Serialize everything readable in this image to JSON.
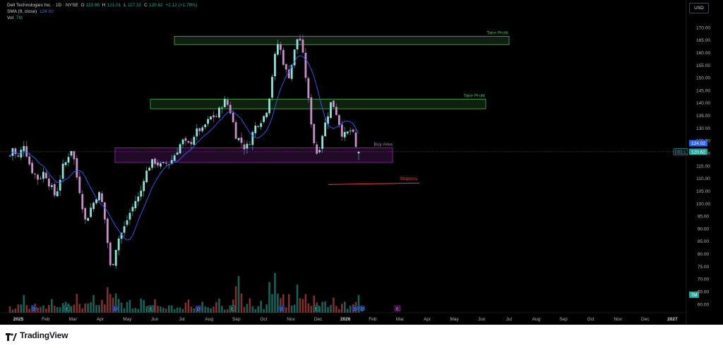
{
  "legend": {
    "symbol_title": "Dell Technologies Inc. · 1D · NYSE",
    "open_label": "O",
    "open": "119.98",
    "high_label": "H",
    "high": "121.01",
    "low_label": "L",
    "low": "117.32",
    "close_label": "C",
    "close": "120.62",
    "change": "+2.12 (+1.79%)",
    "sma_label": "SMA (9, close)",
    "sma_value": "124.02",
    "vol_label": "Vol",
    "vol_value": "7M"
  },
  "currency": "USD",
  "brand": "TradingView",
  "badges": {
    "sma_badge": "124.02",
    "price_badge": "120.62",
    "ticker_badge": "DELL",
    "volume_badge": "7M"
  },
  "colors": {
    "up": "#26a69a",
    "down": "#ef5350",
    "sma": "#2962ff",
    "take_profit": "#4caf50",
    "buy_area": "#9c27b0",
    "stoploss": "#f23645"
  },
  "chart_data": {
    "type": "candlestick",
    "y_axis_ticks": [
      170,
      165,
      160,
      155,
      150,
      145,
      140,
      135,
      130,
      125,
      120,
      115,
      110,
      105,
      100,
      95,
      90,
      85,
      80,
      75,
      70,
      65,
      60
    ],
    "y_tick_labels": [
      "170.00",
      "165.00",
      "160.00",
      "155.00",
      "150.00",
      "145.00",
      "140.00",
      "135.00",
      "130.00",
      "125.00",
      "120.00",
      "115.00",
      "110.00",
      "105.00",
      "100.00",
      "95.00",
      "90.00",
      "85.00",
      "80.00",
      "75.00",
      "70.00",
      "65.00",
      "60.00"
    ],
    "ylim": [
      58,
      173
    ],
    "x_axis_labels": [
      "2025",
      "Feb",
      "Mar",
      "Apr",
      "May",
      "Jun",
      "Jul",
      "Aug",
      "Sep",
      "Oct",
      "Nov",
      "Dec",
      "2026",
      "Feb",
      "Mar",
      "Apr",
      "May",
      "Jun",
      "Jul",
      "Aug",
      "Sep",
      "Oct",
      "Nov",
      "Dec",
      "2027"
    ],
    "last_close": 120.62,
    "sma_last": 124.02,
    "price_path": [
      [
        0,
        119
      ],
      [
        5,
        123
      ],
      [
        10,
        117
      ],
      [
        15,
        120
      ],
      [
        20,
        124
      ],
      [
        25,
        119
      ],
      [
        30,
        114
      ],
      [
        35,
        112
      ],
      [
        40,
        110
      ],
      [
        45,
        111
      ],
      [
        50,
        113
      ],
      [
        55,
        109
      ],
      [
        60,
        106
      ],
      [
        65,
        103
      ],
      [
        70,
        107
      ],
      [
        75,
        114
      ],
      [
        80,
        116
      ],
      [
        85,
        120
      ],
      [
        88,
        122
      ],
      [
        92,
        118
      ],
      [
        96,
        111
      ],
      [
        100,
        106
      ],
      [
        104,
        100
      ],
      [
        108,
        93
      ],
      [
        112,
        95
      ],
      [
        116,
        98
      ],
      [
        120,
        100
      ],
      [
        124,
        103
      ],
      [
        128,
        104
      ],
      [
        132,
        101
      ],
      [
        136,
        95
      ],
      [
        140,
        86
      ],
      [
        143,
        78
      ],
      [
        146,
        72
      ],
      [
        148,
        76
      ],
      [
        152,
        82
      ],
      [
        156,
        86
      ],
      [
        160,
        88
      ],
      [
        164,
        90
      ],
      [
        168,
        93
      ],
      [
        172,
        96
      ],
      [
        176,
        98
      ],
      [
        180,
        101
      ],
      [
        184,
        102
      ],
      [
        188,
        104
      ],
      [
        192,
        110
      ],
      [
        196,
        112
      ],
      [
        200,
        115
      ],
      [
        204,
        116
      ],
      [
        208,
        117
      ],
      [
        212,
        116
      ],
      [
        216,
        115
      ],
      [
        220,
        115
      ],
      [
        224,
        116
      ],
      [
        228,
        116
      ],
      [
        232,
        117
      ],
      [
        236,
        119
      ],
      [
        240,
        121
      ],
      [
        244,
        123
      ],
      [
        248,
        125
      ],
      [
        252,
        124
      ],
      [
        256,
        123
      ],
      [
        260,
        124
      ],
      [
        264,
        127
      ],
      [
        268,
        128
      ],
      [
        272,
        130
      ],
      [
        276,
        128
      ],
      [
        280,
        131
      ],
      [
        284,
        132
      ],
      [
        288,
        134
      ],
      [
        292,
        135
      ],
      [
        296,
        134
      ],
      [
        300,
        136
      ],
      [
        304,
        139
      ],
      [
        308,
        141
      ],
      [
        312,
        140
      ],
      [
        316,
        138
      ],
      [
        320,
        134
      ],
      [
        324,
        128
      ],
      [
        328,
        126
      ],
      [
        332,
        125
      ],
      [
        336,
        123
      ],
      [
        340,
        122
      ],
      [
        344,
        124
      ],
      [
        348,
        127
      ],
      [
        352,
        130
      ],
      [
        356,
        132
      ],
      [
        360,
        133
      ],
      [
        364,
        134
      ],
      [
        368,
        136
      ],
      [
        372,
        140
      ],
      [
        376,
        148
      ],
      [
        380,
        156
      ],
      [
        384,
        162
      ],
      [
        387,
        165
      ],
      [
        390,
        160
      ],
      [
        394,
        156
      ],
      [
        398,
        152
      ],
      [
        402,
        151
      ],
      [
        406,
        156
      ],
      [
        410,
        161
      ],
      [
        414,
        166
      ],
      [
        418,
        165
      ],
      [
        422,
        158
      ],
      [
        426,
        150
      ],
      [
        430,
        140
      ],
      [
        434,
        132
      ],
      [
        438,
        124
      ],
      [
        442,
        120
      ],
      [
        446,
        123
      ],
      [
        450,
        128
      ],
      [
        454,
        132
      ],
      [
        458,
        136
      ],
      [
        462,
        140
      ],
      [
        466,
        139
      ],
      [
        470,
        136
      ],
      [
        474,
        132
      ],
      [
        478,
        128
      ],
      [
        482,
        127
      ],
      [
        486,
        128
      ],
      [
        490,
        129
      ],
      [
        494,
        127
      ],
      [
        498,
        122
      ],
      [
        502,
        120.62
      ]
    ],
    "volume_peaks": [
      [
        12,
        16
      ],
      [
        20,
        22
      ],
      [
        34,
        18
      ],
      [
        48,
        12
      ],
      [
        60,
        20
      ],
      [
        80,
        28
      ],
      [
        96,
        34
      ],
      [
        110,
        25
      ],
      [
        120,
        38
      ],
      [
        132,
        30
      ],
      [
        142,
        52
      ],
      [
        150,
        42
      ],
      [
        158,
        36
      ],
      [
        170,
        30
      ],
      [
        190,
        26
      ],
      [
        210,
        24
      ],
      [
        232,
        20
      ],
      [
        256,
        22
      ],
      [
        276,
        18
      ],
      [
        300,
        24
      ],
      [
        322,
        18
      ],
      [
        330,
        80
      ],
      [
        344,
        26
      ],
      [
        360,
        20
      ],
      [
        374,
        44
      ],
      [
        382,
        58
      ],
      [
        392,
        34
      ],
      [
        402,
        28
      ],
      [
        414,
        40
      ],
      [
        424,
        50
      ],
      [
        438,
        34
      ],
      [
        452,
        24
      ],
      [
        466,
        30
      ],
      [
        480,
        26
      ],
      [
        494,
        22
      ],
      [
        500,
        30
      ]
    ],
    "annotations": [
      {
        "type": "rectangle",
        "label": "Take Profit",
        "y_top": 166.5,
        "y_bottom": 163.2,
        "color": "#4caf50"
      },
      {
        "type": "rectangle",
        "label": "Take Profit",
        "y_top": 141.5,
        "y_bottom": 137.7,
        "color": "#4caf50"
      },
      {
        "type": "rectangle",
        "label": "Buy Area",
        "y_top": 122.2,
        "y_bottom": 116.4,
        "color": "#9c27b0"
      },
      {
        "type": "line",
        "label": "Stoploss",
        "y_start": 107.6,
        "y_end": 108.2,
        "color": "#f23645"
      }
    ],
    "events": [
      "D",
      "E",
      "D",
      "E",
      "D",
      "E",
      "D",
      "E",
      "D",
      "E",
      "D",
      "E",
      "D",
      "E",
      "D",
      "E"
    ]
  }
}
